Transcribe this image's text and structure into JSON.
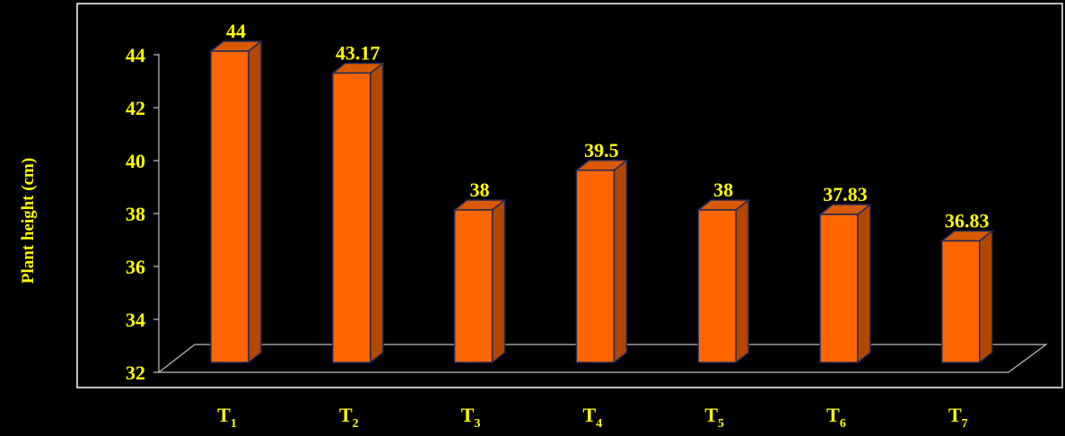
{
  "chart_data": {
    "type": "bar",
    "ylabel": "Plant height (cm)",
    "ylim": [
      32,
      44
    ],
    "yticks": [
      32,
      34,
      36,
      38,
      40,
      42,
      44
    ],
    "categories": [
      {
        "base": "T",
        "sub": "1"
      },
      {
        "base": "T",
        "sub": "2"
      },
      {
        "base": "T",
        "sub": "3"
      },
      {
        "base": "T",
        "sub": "4"
      },
      {
        "base": "T",
        "sub": "5"
      },
      {
        "base": "T",
        "sub": "6"
      },
      {
        "base": "T",
        "sub": "7"
      }
    ],
    "values": [
      44,
      43.17,
      38,
      39.5,
      38,
      37.83,
      36.83
    ],
    "data_labels": [
      "44",
      "43.17",
      "38",
      "39.5",
      "38",
      "37.83",
      "36.83"
    ],
    "colors": {
      "bar_front": "#FF6600",
      "bar_side": "#B34700",
      "bar_top": "#D95A00",
      "bar_edge": "#1F2A5A",
      "text": "#FFFF00",
      "axis": "#BFBFBF",
      "frame": "#FFFFFF",
      "background": "#000000"
    },
    "grid": false,
    "legend": "none"
  }
}
